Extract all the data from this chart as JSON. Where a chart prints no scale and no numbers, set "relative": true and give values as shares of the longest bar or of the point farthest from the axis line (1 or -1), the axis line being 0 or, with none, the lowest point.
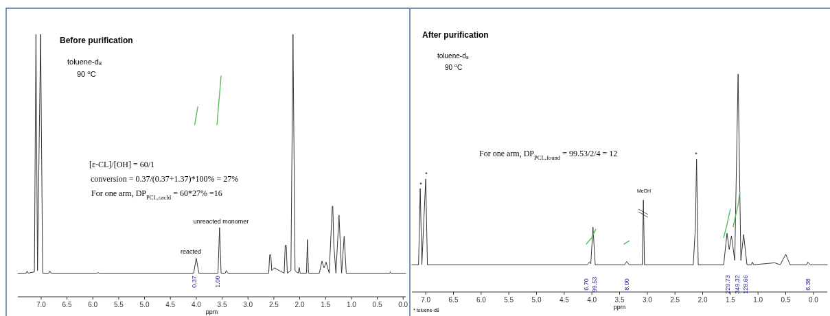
{
  "chart_data": [
    {
      "type": "line",
      "title": "Before purification",
      "xlabel": "ppm",
      "relative": true,
      "tick_labels": "x",
      "xlim": [
        7.45,
        -0.05
      ],
      "xticks": [
        {
          "value": 7,
          "label": "7.0"
        },
        6.5,
        {
          "value": 6,
          "label": "6.0"
        },
        5.5,
        {
          "value": 5,
          "label": "5.0"
        },
        4.5,
        {
          "value": 4,
          "label": "4.0"
        },
        3.5,
        {
          "value": 3,
          "label": "3.0"
        },
        2.5,
        {
          "value": 2,
          "label": "2.0"
        },
        1.5,
        {
          "value": 1,
          "label": "1.0"
        },
        0.5,
        {
          "value": 0,
          "label": "0.0"
        }
      ],
      "series": [
        {
          "color": "#333333",
          "x": [
            7.45,
            7.29,
            7.27,
            7.25,
            7.13,
            7.1,
            7.07,
            7.01,
            6.97,
            6.85,
            6.83,
            6.81,
            5.92,
            5.9,
            5.88,
            4.05,
            4.0,
            3.95,
            3.58,
            3.55,
            3.52,
            3.44,
            3.42,
            3.39,
            2.6,
            2.58,
            2.56,
            2.54,
            2.49,
            2.3,
            2.28,
            2.26,
            2.24,
            2.17,
            2.13,
            2.09,
            2.03,
            2.01,
            1.99,
            1.87,
            1.85,
            1.83,
            1.62,
            1.57,
            1.53,
            1.49,
            1.43,
            1.37,
            1.36,
            1.34,
            1.3,
            1.24,
            1.19,
            1.14,
            1.1,
            0.26,
            0.25,
            0.24,
            -0.05
          ],
          "values": [
            0.09,
            0.09,
            0.098,
            0.09,
            0.095,
            1,
            0.1,
            1,
            0.09,
            0.09,
            0.098,
            0.09,
            0.09,
            0.092,
            0.09,
            0.09,
            0.147,
            0.09,
            0.09,
            0.263,
            0.09,
            0.09,
            0.1,
            0.09,
            0.09,
            0.16,
            0.16,
            0.1,
            0.11,
            0.09,
            0.196,
            0.196,
            0.09,
            0.1,
            1,
            0.1,
            0.09,
            0.112,
            0.09,
            0.09,
            0.218,
            0.09,
            0.09,
            0.136,
            0.11,
            0.132,
            0.09,
            0.345,
            0.345,
            0.196,
            0.09,
            0.311,
            0.09,
            0.231,
            0.09,
            0.09,
            0.095,
            0.09,
            0.09
          ]
        },
        {
          "color": "#5cb85c",
          "x": [
            4.03,
            4.0,
            3.97
          ],
          "values": [
            0.656,
            0.69,
            0.724
          ]
        },
        {
          "color": "#5cb85c",
          "x": [
            3.6,
            3.56,
            3.52
          ],
          "values": [
            0.656,
            0.75,
            0.841
          ]
        }
      ],
      "annotations": [
        "toluene-d₈",
        "90 $^{o}$C",
        "[ε-CL]/[OH] = 60/1",
        "conversion = 0.37/(0.37+1.37)*100% = 27%",
        "For one arm, DP$_{PCL,cacld}$ = 60*27% =16",
        "reacted",
        "unreacted monomer",
        "0.37",
        "1.00"
      ]
    },
    {
      "type": "line",
      "title": "After purification",
      "xlabel": "ppm",
      "relative": true,
      "tick_labels": "x",
      "xlim": [
        7.25,
        -0.25
      ],
      "xticks": [
        {
          "value": 7,
          "label": "7.0"
        },
        6.5,
        {
          "value": 6,
          "label": "6.0"
        },
        5.5,
        {
          "value": 5,
          "label": "5.0"
        },
        4.5,
        {
          "value": 4,
          "label": "4.0"
        },
        3.5,
        {
          "value": 3,
          "label": "3.0"
        },
        2.5,
        {
          "value": 2,
          "label": "2.0"
        },
        1.5,
        {
          "value": 1,
          "label": "1.0"
        },
        0.5,
        {
          "value": 0,
          "label": "0.0"
        }
      ],
      "series": [
        {
          "color": "#333333",
          "x": [
            7.25,
            7.13,
            7.1,
            7.07,
            7.04,
            7.0,
            6.97,
            4.08,
            4.05,
            4.02,
            3.98,
            3.94,
            3.41,
            3.37,
            3.33,
            3.09,
            3.07,
            3.05,
            2.17,
            2.13,
            2.11,
            2.08,
            1.62,
            1.56,
            1.52,
            1.48,
            1.42,
            1.36,
            1.31,
            1.26,
            1.2,
            1.12,
            1.1,
            1.08,
            0.82,
            0.7,
            0.6,
            0.5,
            0.42,
            0.12,
            0.1,
            0.06,
            -0.25
          ],
          "values": [
            0.125,
            0.125,
            0.475,
            0.125,
            0.3,
            0.519,
            0.125,
            0.125,
            0.137,
            0.13,
            0.298,
            0.125,
            0.125,
            0.14,
            0.125,
            0.125,
            0.422,
            0.125,
            0.125,
            0.3,
            0.609,
            0.125,
            0.125,
            0.27,
            0.195,
            0.258,
            0.145,
            1,
            0.145,
            0.264,
            0.125,
            0.125,
            0.137,
            0.125,
            0.131,
            0.134,
            0.125,
            0.173,
            0.125,
            0.125,
            0.137,
            0.125,
            0.125
          ]
        },
        {
          "color": "#5cb85c",
          "x": [
            4.1,
            4.0,
            3.93
          ],
          "values": [
            0.22,
            0.25,
            0.288
          ]
        },
        {
          "color": "#5cb85c",
          "x": [
            3.42,
            3.33
          ],
          "values": [
            0.22,
            0.234
          ]
        },
        {
          "color": "#5cb85c",
          "x": [
            1.62,
            1.56,
            1.5
          ],
          "values": [
            0.25,
            0.31,
            0.38
          ]
        },
        {
          "color": "#5cb85c",
          "x": [
            1.45,
            1.36,
            1.33
          ],
          "values": [
            0.3,
            0.4,
            0.458
          ]
        }
      ],
      "annotations": [
        "toluene-d₈",
        "90 $^{o}$C",
        "For one arm, DP$_{PCL,found}$ = 99.53/2/4 = 12",
        "* toluene-d8",
        "*",
        "*",
        "*",
        "MeOH",
        "6.70",
        "99.53",
        "8.00",
        "229.73",
        "349.32",
        "128.66",
        "6.38"
      ]
    }
  ]
}
